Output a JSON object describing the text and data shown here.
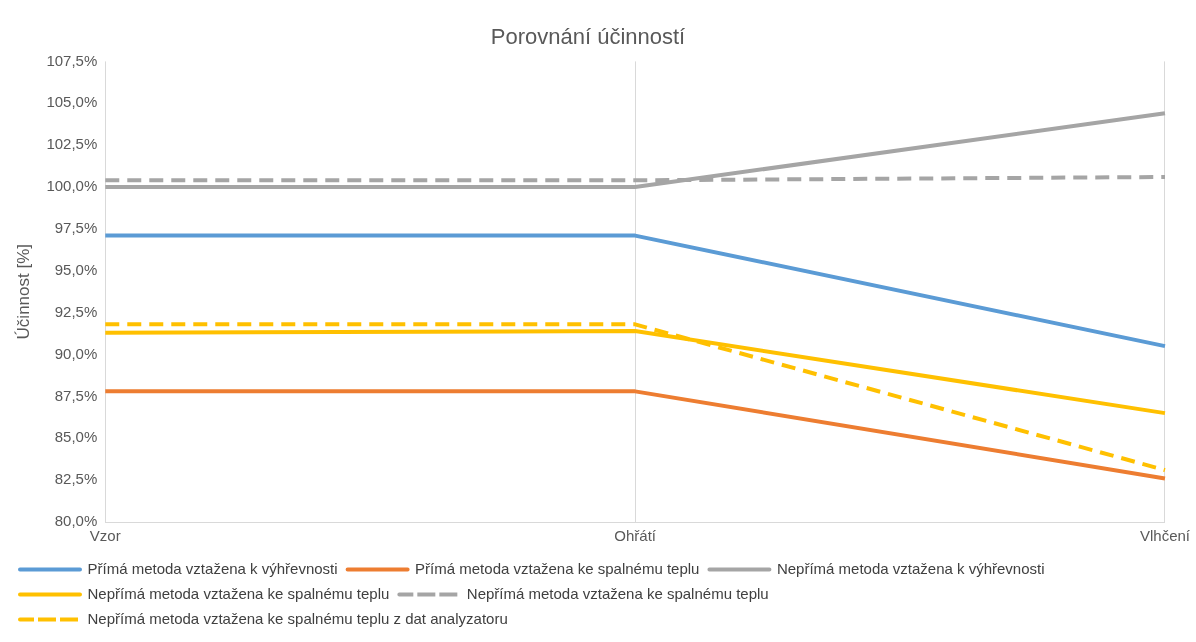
{
  "chart_data": {
    "type": "line",
    "title": "Porovnání účinností",
    "ylabel": "Účinnost [%]",
    "categories": [
      "Vzor",
      "Ohřátí",
      "Vlhčení"
    ],
    "series": [
      {
        "name": "Přímá metoda vztažena k výhřevnosti",
        "color": "#5b9bd5",
        "values": [
          97.1,
          97.1,
          90.5
        ]
      },
      {
        "name": "Přímá metoda vztažena ke spalnému teplu",
        "color": "#ed7d31",
        "values": [
          87.8,
          87.8,
          82.6
        ]
      },
      {
        "name": "Nepřímá metoda vztažena k výhřevnosti",
        "color": "#a5a5a5",
        "values": [
          100.0,
          100.0,
          104.4
        ]
      },
      {
        "name": "Nepřímá metoda vztažena ke spalnému teplu",
        "color": "#ffc000",
        "values": [
          91.3,
          91.4,
          86.5
        ]
      },
      {
        "name": "Nepřímá metoda vztažena ke spalnému teplu",
        "color": "#a5a5a5",
        "line_style": "dashed",
        "values": [
          100.4,
          100.4,
          100.6
        ]
      },
      {
        "name": "Nepřímá metoda vztažena ke spalnému teplu z dat analyzatoru",
        "color": "#ffc000",
        "line_style": "dashed",
        "values": [
          91.8,
          91.8,
          83.1
        ]
      }
    ],
    "ylim": [
      80,
      107.5
    ],
    "yticks": [
      {
        "value": 80,
        "label": "80,0%"
      },
      {
        "value": 82.5,
        "label": "82,5%"
      },
      {
        "value": 85,
        "label": "85,0%"
      },
      {
        "value": 87.5,
        "label": "87,5%"
      },
      {
        "value": 90,
        "label": "90,0%"
      },
      {
        "value": 92.5,
        "label": "92,5%"
      },
      {
        "value": 95,
        "label": "95,0%"
      },
      {
        "value": 97.5,
        "label": "97,5%"
      },
      {
        "value": 100,
        "label": "100,0%"
      },
      {
        "value": 102.5,
        "label": "102,5%"
      },
      {
        "value": 105,
        "label": "105,0%"
      },
      {
        "value": 107.5,
        "label": "107,5%"
      }
    ],
    "grid": "x",
    "legend": "bottom",
    "marker": "none",
    "line_style": "solid"
  }
}
